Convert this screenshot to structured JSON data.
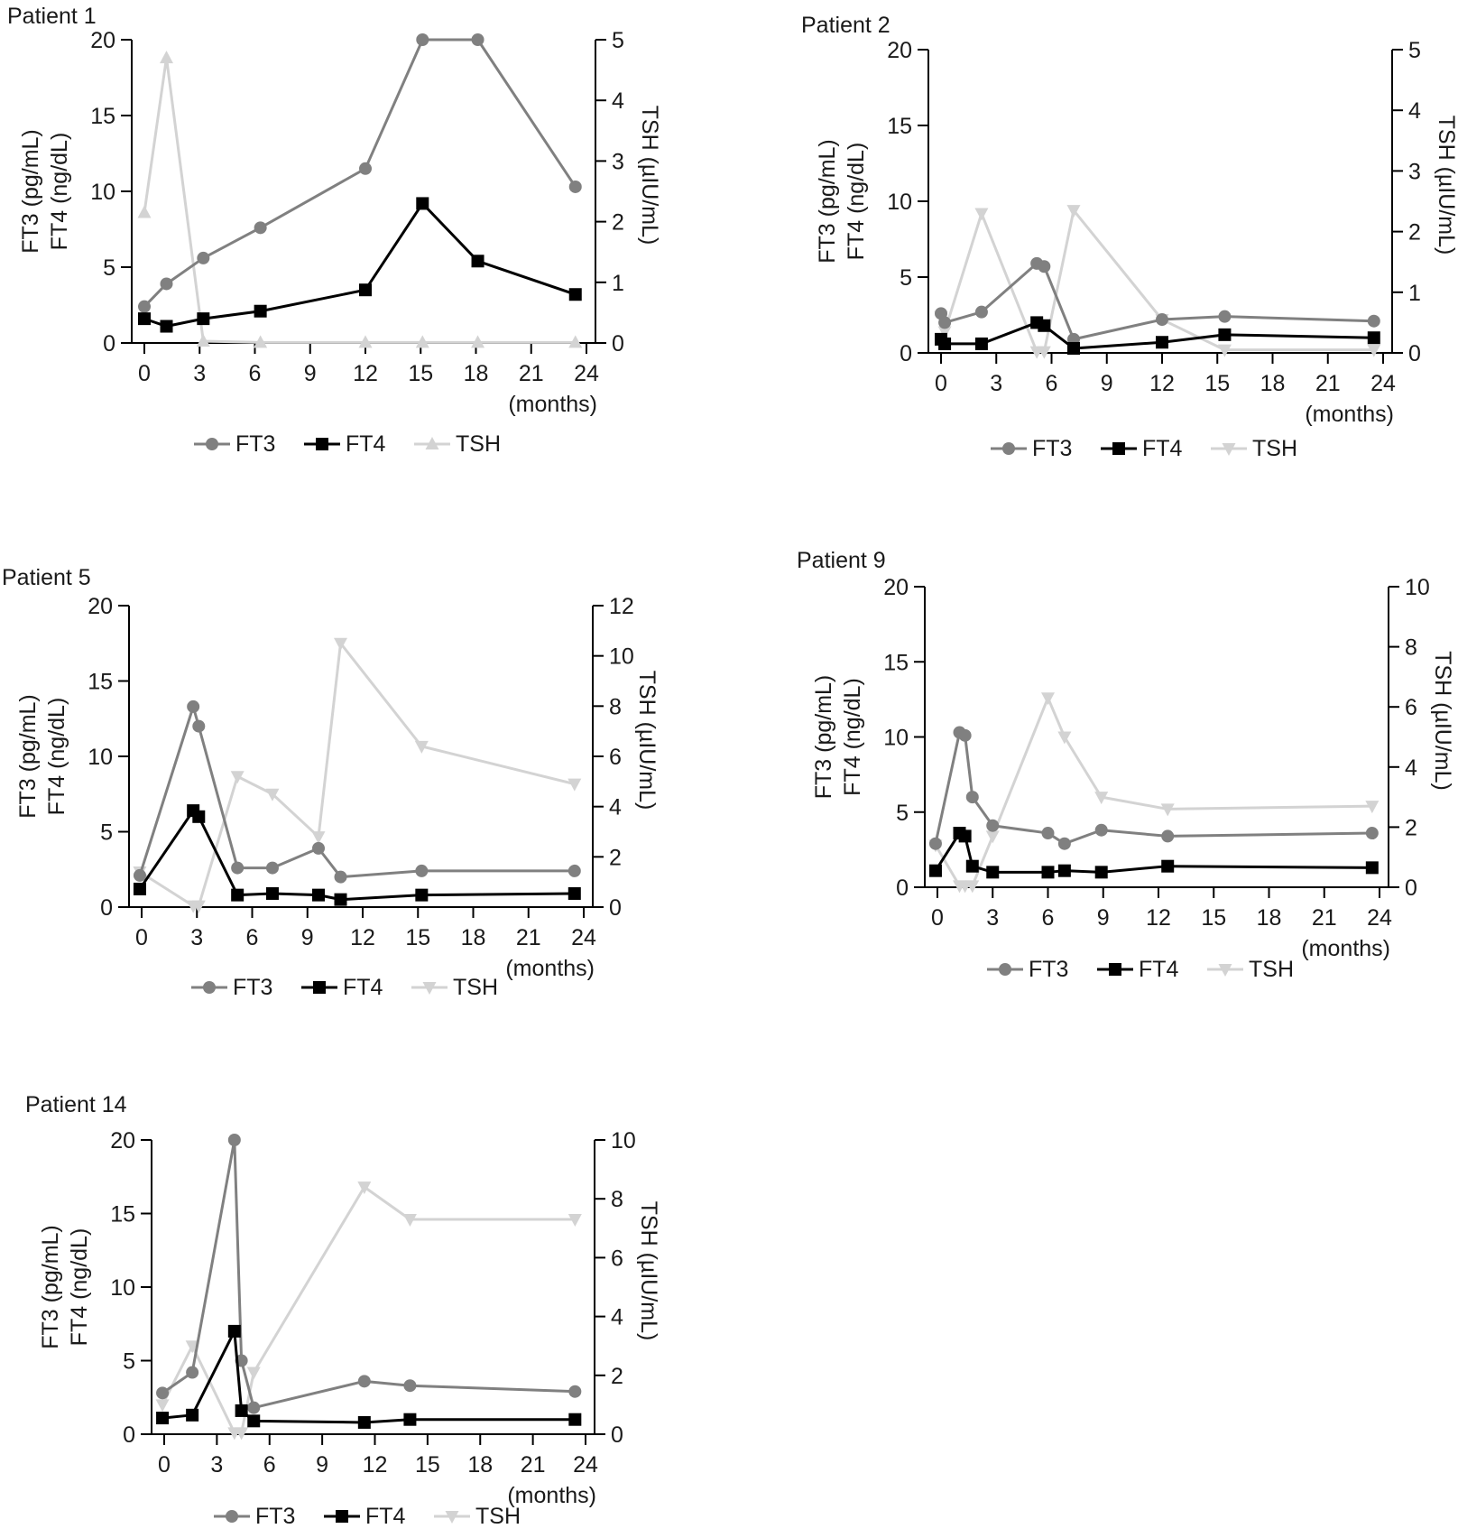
{
  "colors": {
    "FT3": "#808080",
    "FT4": "#000000",
    "TSH": "#d3d3d3",
    "axis": "#000000"
  },
  "chart_data": [
    {
      "type": "line",
      "title": "Patient 1",
      "xlabel": "(months)",
      "ylabel_line1": "FT3 (pg/mL)",
      "ylabel_line2": "FT4 (ng/dL)",
      "y2label": "TSH (µIU/mL)",
      "xlim": [
        0,
        24
      ],
      "xticks": [
        0,
        3,
        6,
        9,
        12,
        15,
        18,
        21,
        24
      ],
      "ylim": [
        0,
        20
      ],
      "yticks": [
        0,
        5,
        10,
        15,
        20
      ],
      "y2lim": [
        0,
        5
      ],
      "y2ticks": [
        0,
        1,
        2,
        3,
        4,
        5
      ],
      "legend": [
        "FT3",
        "FT4",
        "TSH"
      ],
      "tsh_marker": "triangle-up",
      "series": [
        {
          "name": "FT3",
          "marker": "circle",
          "x": [
            0,
            1.2,
            3.2,
            6.3,
            12,
            15.1,
            18.1,
            23.4
          ],
          "y": [
            2.4,
            3.9,
            5.6,
            7.6,
            11.5,
            20,
            20,
            10.3
          ]
        },
        {
          "name": "FT4",
          "marker": "square",
          "x": [
            0,
            1.2,
            3.2,
            6.3,
            12,
            15.1,
            18.1,
            23.4
          ],
          "y": [
            1.6,
            1.1,
            1.6,
            2.1,
            3.5,
            9.2,
            5.4,
            3.2
          ]
        },
        {
          "name": "TSH",
          "axis": "right",
          "marker": "triangle-up",
          "x": [
            0,
            1.2,
            3.2,
            6.3,
            12,
            15.1,
            18.1,
            23.4
          ],
          "y": [
            2.15,
            4.7,
            0.03,
            0.01,
            0.01,
            0.01,
            0.01,
            0.01
          ]
        }
      ]
    },
    {
      "type": "line",
      "title": "Patient 2",
      "xlabel": "(months)",
      "ylabel_line1": "FT3 (pg/mL)",
      "ylabel_line2": "FT4 (ng/dL)",
      "y2label": "TSH (µIU/mL)",
      "xlim": [
        0,
        24
      ],
      "xticks": [
        0,
        3,
        6,
        9,
        12,
        15,
        18,
        21,
        24
      ],
      "ylim": [
        0,
        20
      ],
      "yticks": [
        0,
        5,
        10,
        15,
        20
      ],
      "y2lim": [
        0,
        5
      ],
      "y2ticks": [
        0,
        1,
        2,
        3,
        4,
        5
      ],
      "legend": [
        "FT3",
        "FT4",
        "TSH"
      ],
      "tsh_marker": "triangle-down",
      "series": [
        {
          "name": "FT3",
          "marker": "circle",
          "x": [
            0,
            0.2,
            2.2,
            5.2,
            5.6,
            7.2,
            12,
            15.4,
            23.5
          ],
          "y": [
            2.6,
            2.0,
            2.7,
            5.9,
            5.7,
            0.9,
            2.2,
            2.4,
            2.1
          ]
        },
        {
          "name": "FT4",
          "marker": "square",
          "x": [
            0,
            0.2,
            2.2,
            5.2,
            5.6,
            7.2,
            12,
            15.4,
            23.5
          ],
          "y": [
            0.9,
            0.6,
            0.6,
            2.0,
            1.8,
            0.3,
            0.7,
            1.2,
            1.0
          ]
        },
        {
          "name": "TSH",
          "axis": "right",
          "marker": "triangle-down",
          "x": [
            0,
            0.2,
            2.2,
            5.2,
            5.6,
            7.2,
            12,
            15.4,
            23.5
          ],
          "y": [
            0.6,
            0.35,
            2.3,
            0.02,
            0.02,
            2.35,
            0.55,
            0.05,
            0.05
          ]
        }
      ]
    },
    {
      "type": "line",
      "title": "Patient 5",
      "xlabel": "(months)",
      "ylabel_line1": "FT3 (pg/mL)",
      "ylabel_line2": "FT4 (ng/dL)",
      "y2label": "TSH (µIU/mL)",
      "xlim": [
        0,
        24
      ],
      "xticks": [
        0,
        3,
        6,
        9,
        12,
        15,
        18,
        21,
        24
      ],
      "ylim": [
        0,
        20
      ],
      "yticks": [
        0,
        5,
        10,
        15,
        20
      ],
      "y2lim": [
        0,
        12
      ],
      "y2ticks": [
        0,
        2,
        4,
        6,
        8,
        10,
        12
      ],
      "legend": [
        "FT3",
        "FT4",
        "TSH"
      ],
      "tsh_marker": "triangle-down",
      "series": [
        {
          "name": "FT3",
          "marker": "circle",
          "x": [
            -0.1,
            2.8,
            3.1,
            5.2,
            7.1,
            9.6,
            10.8,
            15.2,
            23.5
          ],
          "y": [
            2.1,
            13.3,
            12.0,
            2.6,
            2.6,
            3.9,
            2.0,
            2.4,
            2.4
          ]
        },
        {
          "name": "FT4",
          "marker": "square",
          "x": [
            -0.1,
            2.8,
            3.1,
            5.2,
            7.1,
            9.6,
            10.8,
            15.2,
            23.5
          ],
          "y": [
            1.2,
            6.4,
            6.0,
            0.8,
            0.9,
            0.8,
            0.5,
            0.8,
            0.9
          ]
        },
        {
          "name": "TSH",
          "axis": "right",
          "marker": "triangle-down",
          "x": [
            -0.1,
            2.8,
            3.1,
            5.2,
            7.1,
            9.6,
            10.8,
            15.2,
            23.5
          ],
          "y": [
            1.4,
            0.05,
            0.05,
            5.2,
            4.5,
            2.8,
            10.5,
            6.4,
            4.9
          ]
        }
      ]
    },
    {
      "type": "line",
      "title": "Patient 9",
      "xlabel": "(months)",
      "ylabel_line1": "FT3 (pg/mL)",
      "ylabel_line2": "FT4 (ng/dL)",
      "y2label": "TSH (µIU/mL)",
      "xlim": [
        0,
        24
      ],
      "xticks": [
        0,
        3,
        6,
        9,
        12,
        15,
        18,
        21,
        24
      ],
      "ylim": [
        0,
        20
      ],
      "yticks": [
        0,
        5,
        10,
        15,
        20
      ],
      "y2lim": [
        0,
        10
      ],
      "y2ticks": [
        0,
        2,
        4,
        6,
        8,
        10
      ],
      "legend": [
        "FT3",
        "FT4",
        "TSH"
      ],
      "tsh_marker": "triangle-down",
      "series": [
        {
          "name": "FT3",
          "marker": "circle",
          "x": [
            -0.1,
            1.2,
            1.5,
            1.9,
            3.0,
            6.0,
            6.9,
            8.9,
            12.5,
            23.6
          ],
          "y": [
            2.9,
            10.3,
            10.1,
            6.0,
            4.1,
            3.6,
            2.9,
            3.8,
            3.4,
            3.6
          ]
        },
        {
          "name": "FT4",
          "marker": "square",
          "x": [
            -0.1,
            1.2,
            1.5,
            1.9,
            3.0,
            6.0,
            6.9,
            8.9,
            12.5,
            23.6
          ],
          "y": [
            1.1,
            3.6,
            3.4,
            1.4,
            1.0,
            1.0,
            1.1,
            1.0,
            1.4,
            1.3
          ]
        },
        {
          "name": "TSH",
          "axis": "right",
          "marker": "triangle-down",
          "x": [
            -0.1,
            1.2,
            1.5,
            1.9,
            3.0,
            6.0,
            6.9,
            8.9,
            12.5,
            23.6
          ],
          "y": [
            1.4,
            0.05,
            0.05,
            0.05,
            1.7,
            6.3,
            5.0,
            3.0,
            2.6,
            2.7
          ]
        }
      ]
    },
    {
      "type": "line",
      "title": "Patient 14",
      "xlabel": "(months)",
      "ylabel_line1": "FT3 (pg/mL)",
      "ylabel_line2": "FT4 (ng/dL)",
      "y2label": "TSH (µIU/mL)",
      "xlim": [
        0,
        24
      ],
      "xticks": [
        0,
        3,
        6,
        9,
        12,
        15,
        18,
        21,
        24
      ],
      "ylim": [
        0,
        20
      ],
      "yticks": [
        0,
        5,
        10,
        15,
        20
      ],
      "y2lim": [
        0,
        10
      ],
      "y2ticks": [
        0,
        2,
        4,
        6,
        8,
        10
      ],
      "legend": [
        "FT3",
        "FT4",
        "TSH"
      ],
      "tsh_marker": "triangle-down",
      "series": [
        {
          "name": "FT3",
          "marker": "circle",
          "x": [
            -0.1,
            1.6,
            4.0,
            4.4,
            5.1,
            11.4,
            14.0,
            23.4
          ],
          "y": [
            2.8,
            4.2,
            20,
            5.0,
            1.8,
            3.6,
            3.3,
            2.9
          ]
        },
        {
          "name": "FT4",
          "marker": "square",
          "x": [
            -0.1,
            1.6,
            4.0,
            4.4,
            5.1,
            11.4,
            14.0,
            23.4
          ],
          "y": [
            1.1,
            1.3,
            7.0,
            1.6,
            0.9,
            0.8,
            1.0,
            1.0
          ]
        },
        {
          "name": "TSH",
          "axis": "right",
          "marker": "triangle-down",
          "x": [
            -0.1,
            1.6,
            4.0,
            4.4,
            5.1,
            11.4,
            14.0,
            23.4
          ],
          "y": [
            1.0,
            3.0,
            0.05,
            0.05,
            2.1,
            8.4,
            7.3,
            7.3
          ]
        }
      ]
    }
  ]
}
